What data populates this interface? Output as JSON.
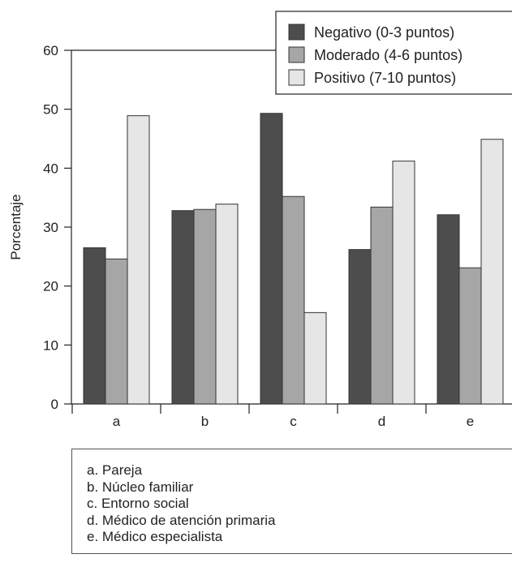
{
  "chart_data": {
    "type": "bar",
    "categories": [
      "a",
      "b",
      "c",
      "d",
      "e"
    ],
    "series": [
      {
        "name": "Negativo (0-3 puntos)",
        "values": [
          26.5,
          32.8,
          49.3,
          26.2,
          32.1
        ],
        "color": "#4d4d4d"
      },
      {
        "name": "Moderado (4-6 puntos)",
        "values": [
          24.6,
          33.0,
          35.2,
          33.4,
          23.1
        ],
        "color": "#a6a6a6"
      },
      {
        "name": "Positivo (7-10 puntos)",
        "values": [
          48.9,
          33.9,
          15.5,
          41.2,
          44.9
        ],
        "color": "#e6e6e6"
      }
    ],
    "ylabel": "Porcentaje",
    "xlabel": "",
    "ylim": [
      0,
      60
    ],
    "yticks": [
      0,
      10,
      20,
      30,
      40,
      50,
      60
    ],
    "legend_position": "top-right",
    "grid": false
  },
  "category_key": [
    "a. Pareja",
    "b. Núcleo familiar",
    "c. Entorno social",
    "d. Médico de atención primaria",
    "e. Médico especialista"
  ],
  "colors": {
    "axis": "#222222",
    "bar_stroke": "#333333"
  }
}
